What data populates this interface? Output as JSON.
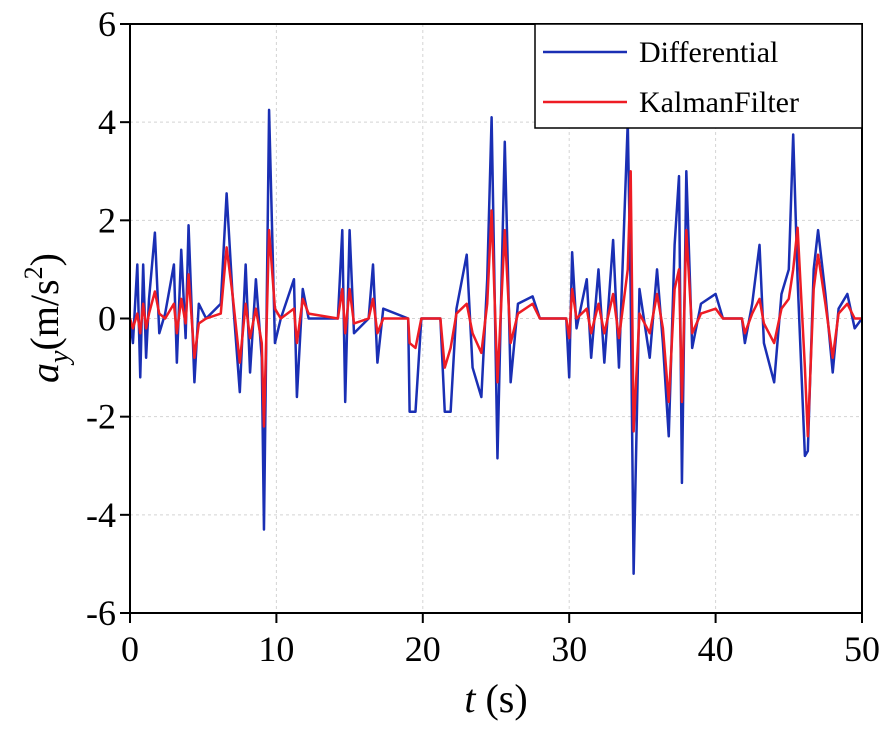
{
  "chart_data": {
    "type": "line",
    "xlabel": {
      "symbol": "t",
      "unit": "(s)"
    },
    "ylabel": {
      "symbol": "a",
      "subscript": "y",
      "unit": "(m/s",
      "superscript": "2",
      "close": ")"
    },
    "xlim": [
      0,
      50
    ],
    "xticks": [
      0,
      10,
      20,
      30,
      40,
      50
    ],
    "ylim": [
      -6,
      6
    ],
    "yticks": [
      -6,
      -4,
      -2,
      0,
      2,
      4,
      6
    ],
    "grid": true,
    "legend": "top-right",
    "x": [
      0,
      0.2,
      0.5,
      0.7,
      0.9,
      1.1,
      1.3,
      1.7,
      2.0,
      2.4,
      3.0,
      3.2,
      3.5,
      3.8,
      4.0,
      4.4,
      4.7,
      5.2,
      6.2,
      6.6,
      7.0,
      7.5,
      7.9,
      8.2,
      8.6,
      9.0,
      9.15,
      9.5,
      9.9,
      10.3,
      11.2,
      11.4,
      11.8,
      12.2,
      14.2,
      14.5,
      14.7,
      15.0,
      15.3,
      16.3,
      16.6,
      16.9,
      17.3,
      19.0,
      19.1,
      19.5,
      19.9,
      21.2,
      21.5,
      21.9,
      22.3,
      23.0,
      23.4,
      24.0,
      24.4,
      24.7,
      25.1,
      25.6,
      26.0,
      26.5,
      27.5,
      28.0,
      29.8,
      30.0,
      30.2,
      30.5,
      31.2,
      31.5,
      32.0,
      32.4,
      33.0,
      33.4,
      34.0,
      34.2,
      34.4,
      34.8,
      35.5,
      36.0,
      36.4,
      36.8,
      37.2,
      37.5,
      37.7,
      38.0,
      38.4,
      39.0,
      40.0,
      40.5,
      41.8,
      42.0,
      42.5,
      43.0,
      43.3,
      44.0,
      44.5,
      45.0,
      45.3,
      45.6,
      46.1,
      46.3,
      46.7,
      47.0,
      47.5,
      48.0,
      48.4,
      49.0,
      49.5,
      50.0
    ],
    "series": [
      {
        "name": "Differential",
        "color": "#1a2fb4",
        "values": [
          0,
          -0.5,
          1.1,
          -1.2,
          1.1,
          -0.8,
          0.4,
          1.75,
          -0.3,
          0.1,
          1.1,
          -0.9,
          1.4,
          -0.4,
          1.9,
          -1.3,
          0.3,
          0,
          0.3,
          2.55,
          0.5,
          -1.5,
          1.1,
          -1.1,
          0.8,
          -0.8,
          -4.3,
          4.25,
          -0.5,
          0,
          0.8,
          -1.6,
          0.6,
          0,
          0,
          1.8,
          -1.7,
          1.8,
          -0.3,
          0,
          1.1,
          -0.9,
          0.2,
          0,
          -1.9,
          -1.9,
          0,
          0,
          -1.9,
          -1.9,
          0.2,
          1.3,
          -1.0,
          -1.6,
          0.8,
          4.1,
          -2.85,
          3.6,
          -1.3,
          0.3,
          0.45,
          0,
          0,
          -1.2,
          1.35,
          -0.2,
          0.8,
          -0.8,
          1.0,
          -0.9,
          1.6,
          -1.0,
          4.0,
          0.5,
          -5.2,
          0.6,
          -0.8,
          1.0,
          -0.5,
          -2.4,
          1.5,
          2.9,
          -3.35,
          3.0,
          -0.6,
          0.3,
          0.5,
          0,
          0,
          -0.5,
          0.3,
          1.5,
          -0.5,
          -1.3,
          0.5,
          1.0,
          3.75,
          0.8,
          -2.8,
          -2.7,
          1.0,
          1.8,
          0.5,
          -1.1,
          0.2,
          0.5,
          -0.2,
          0
        ]
      },
      {
        "name": "KalmanFilter",
        "color": "#ee1c24",
        "values": [
          0,
          -0.2,
          0.1,
          -0.3,
          0.3,
          -0.2,
          0.1,
          0.55,
          0.1,
          0,
          0.3,
          -0.3,
          0.4,
          -0.1,
          0.9,
          -0.8,
          -0.1,
          0,
          0.1,
          1.45,
          0.5,
          -0.9,
          0.3,
          -0.4,
          0.2,
          -0.5,
          -2.2,
          1.8,
          0.2,
          0,
          0.2,
          -0.5,
          0.4,
          0.1,
          0,
          0.6,
          -0.3,
          0.6,
          -0.1,
          0,
          0.4,
          -0.3,
          0,
          0,
          -0.5,
          -0.6,
          0,
          0,
          -1.0,
          -0.6,
          0.1,
          0.3,
          -0.3,
          -0.7,
          0.3,
          2.2,
          -1.3,
          1.8,
          -0.5,
          0.1,
          0.3,
          0,
          0,
          -0.4,
          0.6,
          0,
          0.2,
          -0.3,
          0.3,
          -0.3,
          0.5,
          -0.4,
          1.0,
          3.0,
          -2.3,
          0.1,
          -0.3,
          0.5,
          -0.2,
          -1.7,
          0.6,
          1.0,
          -1.7,
          1.8,
          -0.3,
          0.1,
          0.2,
          0,
          0,
          -0.3,
          0.1,
          0.4,
          -0.1,
          -0.5,
          0.2,
          0.4,
          1.0,
          1.85,
          -1.0,
          -2.4,
          0.6,
          1.3,
          0.3,
          -0.8,
          0.1,
          0.3,
          0,
          0
        ]
      }
    ]
  }
}
